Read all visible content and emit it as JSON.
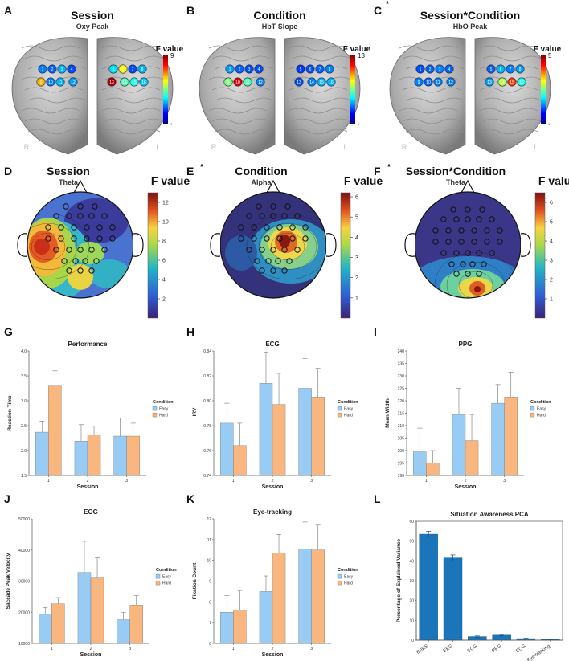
{
  "chart_data": [
    {
      "id": "A",
      "type": "brain-map",
      "title": "Session",
      "subtitle": "Oxy Peak",
      "colorbar_label": "F value",
      "colorbar_max": "9",
      "colorbar_min": "1",
      "left_label": "R",
      "right_label": "L",
      "channels": [
        {
          "n": "1",
          "v": 0.25
        },
        {
          "n": "2",
          "v": 0.22
        },
        {
          "n": "3",
          "v": 0.3
        },
        {
          "n": "4",
          "v": 0.2
        },
        {
          "n": "5",
          "v": 0.35
        },
        {
          "n": "6",
          "v": 0.62
        },
        {
          "n": "7",
          "v": 0.2
        },
        {
          "n": "8",
          "v": 0.3
        },
        {
          "n": "9",
          "v": 0.7
        },
        {
          "n": "10",
          "v": 0.25
        },
        {
          "n": "11",
          "v": 0.3
        },
        {
          "n": "12",
          "v": 0.28
        },
        {
          "n": "13",
          "v": 0.95
        },
        {
          "n": "14",
          "v": 0.45
        },
        {
          "n": "15",
          "v": 0.4
        },
        {
          "n": "16",
          "v": 0.32
        }
      ]
    },
    {
      "id": "B",
      "type": "brain-map",
      "title": "Condition",
      "subtitle": "HbT Slope",
      "colorbar_label": "F value",
      "colorbar_max": "13",
      "colorbar_min": "1",
      "left_label": "R",
      "right_label": "L",
      "channels": [
        {
          "n": "1",
          "v": 0.28
        },
        {
          "n": "2",
          "v": 0.22
        },
        {
          "n": "3",
          "v": 0.2
        },
        {
          "n": "4",
          "v": 0.2
        },
        {
          "n": "5",
          "v": 0.18
        },
        {
          "n": "6",
          "v": 0.2
        },
        {
          "n": "7",
          "v": 0.22
        },
        {
          "n": "8",
          "v": 0.25
        },
        {
          "n": "9",
          "v": 0.5
        },
        {
          "n": "10",
          "v": 0.9
        },
        {
          "n": "11",
          "v": 0.45
        },
        {
          "n": "12",
          "v": 0.25
        },
        {
          "n": "13",
          "v": 0.2
        },
        {
          "n": "14",
          "v": 0.25
        },
        {
          "n": "15",
          "v": 0.3
        },
        {
          "n": "16",
          "v": 0.3
        }
      ]
    },
    {
      "id": "C",
      "type": "brain-map",
      "title": "Session*Condition",
      "subtitle": "HbO Peak",
      "colorbar_label": "F value",
      "colorbar_max": "5",
      "colorbar_min": "1",
      "left_label": "R",
      "right_label": "L",
      "channels": [
        {
          "n": "1",
          "v": 0.2
        },
        {
          "n": "2",
          "v": 0.22
        },
        {
          "n": "3",
          "v": 0.25
        },
        {
          "n": "4",
          "v": 0.22
        },
        {
          "n": "5",
          "v": 0.22
        },
        {
          "n": "6",
          "v": 0.3
        },
        {
          "n": "7",
          "v": 0.25
        },
        {
          "n": "8",
          "v": 0.28
        },
        {
          "n": "9",
          "v": 0.25
        },
        {
          "n": "10",
          "v": 0.22
        },
        {
          "n": "11",
          "v": 0.25
        },
        {
          "n": "12",
          "v": 0.25
        },
        {
          "n": "13",
          "v": 0.28
        },
        {
          "n": "14",
          "v": 0.55
        },
        {
          "n": "15",
          "v": 0.82
        },
        {
          "n": "16",
          "v": 0.4
        }
      ]
    },
    {
      "id": "D",
      "type": "topomap",
      "title": "Session",
      "subtitle": "Theta",
      "colorbar_label": "F value",
      "ticks": [
        "12",
        "10",
        "8",
        "6",
        "4",
        "2"
      ],
      "max": 13
    },
    {
      "id": "E*",
      "type": "topomap",
      "title": "Condition",
      "subtitle": "Alpha",
      "colorbar_label": "F value",
      "ticks": [
        "6",
        "5",
        "4",
        "3",
        "2",
        "1"
      ],
      "max": 6.2
    },
    {
      "id": "F*",
      "type": "topomap",
      "title": "Session*Condition",
      "subtitle": "Theta",
      "colorbar_label": "F value",
      "ticks": [
        "6",
        "5",
        "4",
        "3",
        "2",
        "1"
      ],
      "max": 6.5
    },
    {
      "id": "G",
      "type": "bar",
      "title": "Performance",
      "xlabel": "Session",
      "ylabel": "Reaction Time",
      "categories": [
        "1",
        "2",
        "3"
      ],
      "ylim": [
        1.5,
        4.0
      ],
      "yticks": [
        "1.5",
        "2.0",
        "2.5",
        "3.0",
        "3.5",
        "4.0"
      ],
      "legend_title": "Condition",
      "series": [
        {
          "name": "Easy",
          "values": [
            2.37,
            2.19,
            2.29
          ],
          "errors": [
            0.22,
            0.33,
            0.36
          ]
        },
        {
          "name": "Hard",
          "values": [
            3.31,
            2.31,
            2.29
          ],
          "errors": [
            0.29,
            0.18,
            0.26
          ]
        }
      ]
    },
    {
      "id": "H",
      "type": "bar",
      "title": "ECG",
      "xlabel": "Session",
      "ylabel": "HRV",
      "categories": [
        "1",
        "2",
        "3"
      ],
      "ylim": [
        0.74,
        0.84
      ],
      "yticks": [
        "0.74",
        "0.76",
        "0.78",
        "0.80",
        "0.82",
        "0.84"
      ],
      "legend_title": "Condition",
      "series": [
        {
          "name": "Easy",
          "values": [
            0.782,
            0.814,
            0.81
          ],
          "errors": [
            0.016,
            0.025,
            0.024
          ]
        },
        {
          "name": "Hard",
          "values": [
            0.764,
            0.797,
            0.803
          ],
          "errors": [
            0.018,
            0.025,
            0.023
          ]
        }
      ]
    },
    {
      "id": "I",
      "type": "bar",
      "title": "PPG",
      "xlabel": "Session",
      "ylabel": "Mean Width",
      "categories": [
        "1",
        "2",
        "3"
      ],
      "ylim": [
        190,
        240
      ],
      "yticks": [
        "190",
        "195",
        "200",
        "205",
        "210",
        "215",
        "220",
        "225",
        "230",
        "235",
        "240"
      ],
      "legend_title": "Condition",
      "series": [
        {
          "name": "Easy",
          "values": [
            199.5,
            214.5,
            219.0
          ],
          "errors": [
            9.5,
            10.5,
            7.5
          ]
        },
        {
          "name": "Hard",
          "values": [
            195.0,
            204.0,
            221.5
          ],
          "errors": [
            5.0,
            10.5,
            10.0
          ]
        }
      ]
    },
    {
      "id": "J",
      "type": "bar",
      "title": "EOG",
      "xlabel": "Session",
      "ylabel": "Saccade Peak Velocity",
      "categories": [
        "1",
        "2",
        "3"
      ],
      "ylim": [
        10000,
        50000
      ],
      "yticks": [
        "10000",
        "20000",
        "30000",
        "40000",
        "50000"
      ],
      "legend_title": "Condition",
      "series": [
        {
          "name": "Easy",
          "values": [
            19500,
            32800,
            17600
          ],
          "errors": [
            2000,
            10000,
            2400
          ]
        },
        {
          "name": "Hard",
          "values": [
            22700,
            31000,
            22300
          ],
          "errors": [
            2000,
            6500,
            3000
          ]
        }
      ]
    },
    {
      "id": "K",
      "type": "bar",
      "title": "Eye-tracking",
      "xlabel": "Session",
      "ylabel": "Fixation Count",
      "categories": [
        "1",
        "2",
        "3"
      ],
      "ylim": [
        6,
        12
      ],
      "yticks": [
        "6",
        "7",
        "8",
        "9",
        "10",
        "11",
        "12"
      ],
      "legend_title": "Condition",
      "series": [
        {
          "name": "Easy",
          "values": [
            7.5,
            8.5,
            10.55
          ],
          "errors": [
            0.8,
            0.75,
            1.3
          ]
        },
        {
          "name": "Hard",
          "values": [
            7.6,
            10.35,
            10.5
          ],
          "errors": [
            0.95,
            0.9,
            1.2
          ]
        }
      ]
    },
    {
      "id": "L",
      "type": "bar",
      "title": "Situation Awareness PCA",
      "xlabel": "",
      "ylabel": "Percentage of Explained Variance",
      "categories": [
        "fNIRS",
        "EEG",
        "ECG",
        "PPG",
        "EOG",
        "Eye-tracking"
      ],
      "ylim": [
        0,
        60
      ],
      "yticks": [
        "0",
        "10",
        "20",
        "30",
        "40",
        "50",
        "60"
      ],
      "series": [
        {
          "name": "PCA",
          "values": [
            53.5,
            41.5,
            1.8,
            2.5,
            0.8,
            0.4
          ],
          "errors": [
            1.5,
            1.5,
            0.3,
            0.4,
            0.2,
            0.1
          ]
        }
      ]
    }
  ],
  "colors": {
    "easy": "#99ccf5",
    "hard": "#f9b67e",
    "pca": "#1b75bb",
    "error": "#888888"
  }
}
